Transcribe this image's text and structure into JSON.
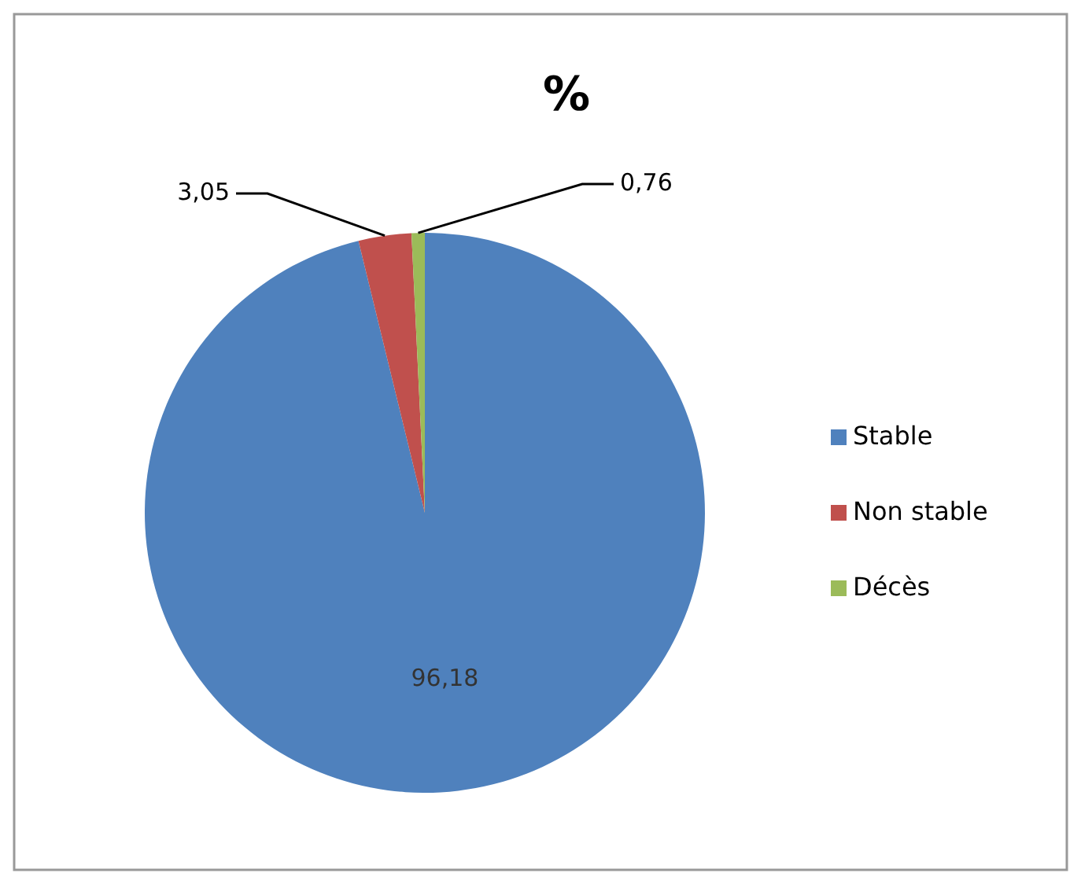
{
  "chart_data": {
    "type": "pie",
    "title": "%",
    "categories": [
      "Stable",
      "Non stable",
      "Décès"
    ],
    "values": [
      96.18,
      3.05,
      0.76
    ],
    "colors": [
      "#4f81bd",
      "#c0504d",
      "#9bbb59"
    ],
    "value_labels": [
      "96,18",
      "3,05",
      "0,76"
    ],
    "legend": "right"
  }
}
